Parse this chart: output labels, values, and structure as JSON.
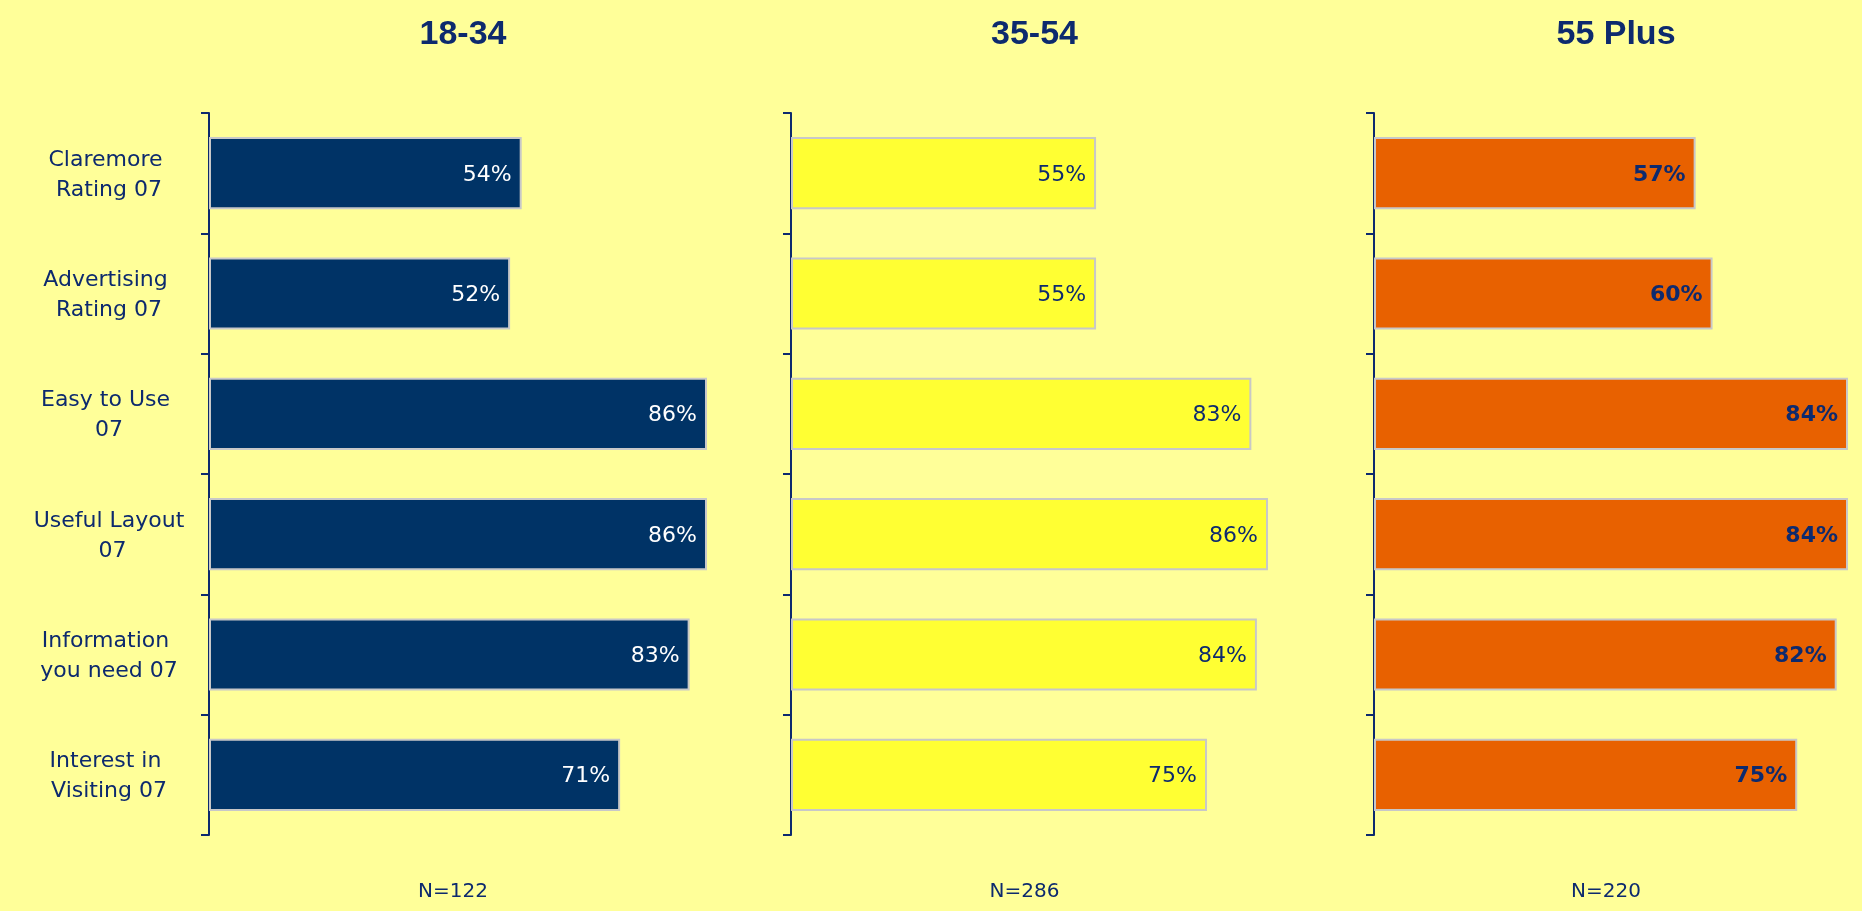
{
  "chart_data": [
    {
      "type": "bar",
      "orientation": "horizontal",
      "title": "18-34",
      "categories": [
        "Claremore Rating 07",
        "Advertising Rating 07",
        "Easy to Use 07",
        "Useful Layout 07",
        "Information you need 07",
        "Interest in Visiting 07"
      ],
      "values": [
        54,
        52,
        86,
        86,
        83,
        71
      ],
      "value_labels": [
        "54%",
        "52%",
        "86%",
        "86%",
        "83%",
        "71%"
      ],
      "color": "#003366",
      "tick_labels": "y",
      "annotations": [
        "N=122"
      ]
    },
    {
      "type": "bar",
      "orientation": "horizontal",
      "title": "35-54",
      "categories": [
        "Claremore Rating 07",
        "Advertising Rating 07",
        "Easy to Use 07",
        "Useful Layout 07",
        "Information you need 07",
        "Interest in Visiting 07"
      ],
      "values": [
        55,
        55,
        83,
        86,
        84,
        75
      ],
      "value_labels": [
        "55%",
        "55%",
        "83%",
        "86%",
        "84%",
        "75%"
      ],
      "color": "#ffff33",
      "tick_labels": false,
      "annotations": [
        "N=286"
      ]
    },
    {
      "type": "bar",
      "orientation": "horizontal",
      "title": "55 Plus",
      "categories": [
        "Claremore Rating 07",
        "Advertising Rating 07",
        "Easy to Use 07",
        "Useful Layout 07",
        "Information you need 07",
        "Interest in Visiting 07"
      ],
      "values": [
        57,
        60,
        84,
        84,
        82,
        75
      ],
      "value_labels": [
        "57%",
        "60%",
        "84%",
        "84%",
        "82%",
        "75%"
      ],
      "color": "#e86100",
      "tick_labels": false,
      "annotations": [
        "N=220"
      ]
    }
  ]
}
